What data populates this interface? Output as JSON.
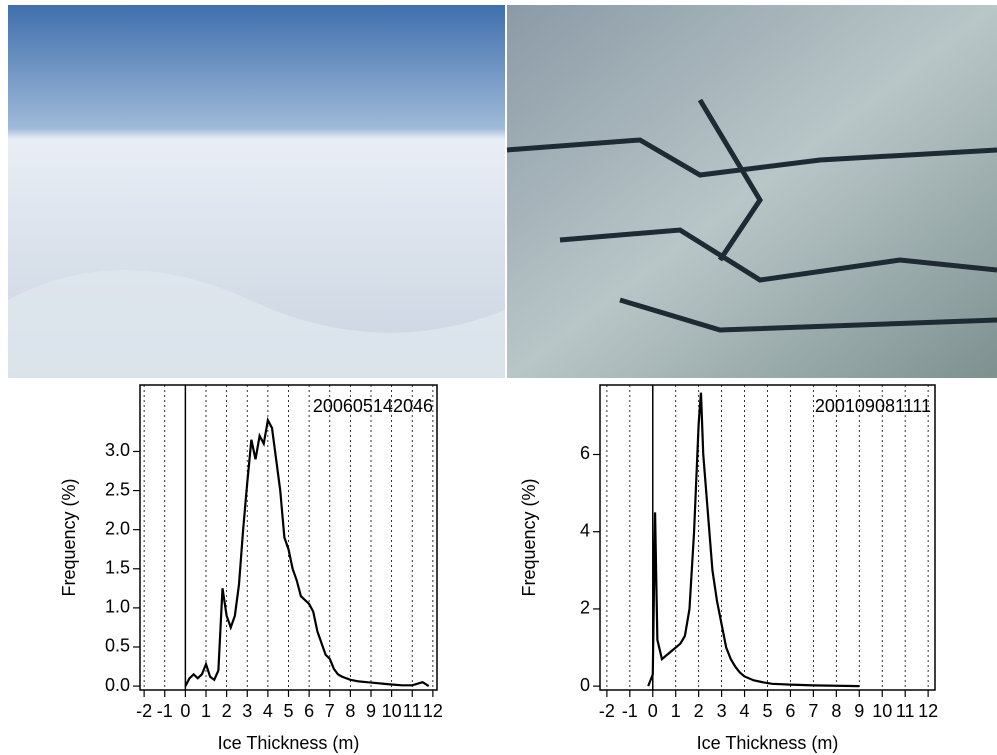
{
  "chart_data": [
    {
      "type": "line",
      "annotation": "200605142046",
      "x_label": "Ice Thickness (m)",
      "y_label": "Frequency (%)",
      "color": "#000000",
      "grid": true,
      "xlim": [
        -2.2,
        12.2
      ],
      "xticks": [
        -2,
        -1,
        0,
        1,
        2,
        3,
        4,
        5,
        6,
        7,
        8,
        9,
        10,
        11,
        12
      ],
      "ylim": [
        -0.05,
        3.85
      ],
      "yticks": [
        {
          "value": 0,
          "label": "0.0"
        },
        0.5,
        {
          "value": 1,
          "label": "1.0"
        },
        1.5,
        {
          "value": 2,
          "label": "2.0"
        },
        2.5,
        {
          "value": 3,
          "label": "3.0"
        }
      ],
      "x": [
        0,
        0.2,
        0.4,
        0.6,
        0.8,
        1.0,
        1.2,
        1.4,
        1.6,
        1.8,
        2.0,
        2.2,
        2.4,
        2.6,
        2.8,
        3.0,
        3.2,
        3.4,
        3.6,
        3.8,
        4.0,
        4.2,
        4.4,
        4.6,
        4.8,
        5.0,
        5.2,
        5.4,
        5.6,
        5.8,
        6.0,
        6.2,
        6.4,
        6.6,
        6.8,
        7.0,
        7.2,
        7.4,
        7.6,
        7.8,
        8.0,
        8.4,
        8.8,
        9.2,
        9.6,
        10,
        10.5,
        11,
        11.5,
        11.8
      ],
      "values": [
        0,
        0.1,
        0.15,
        0.1,
        0.15,
        0.28,
        0.12,
        0.08,
        0.2,
        1.25,
        0.9,
        0.75,
        0.9,
        1.3,
        2.0,
        2.6,
        3.15,
        2.9,
        3.2,
        3.1,
        3.4,
        3.3,
        2.9,
        2.5,
        1.9,
        1.75,
        1.5,
        1.35,
        1.15,
        1.1,
        1.05,
        0.95,
        0.7,
        0.55,
        0.4,
        0.35,
        0.22,
        0.15,
        0.12,
        0.1,
        0.08,
        0.06,
        0.05,
        0.04,
        0.03,
        0.02,
        0.01,
        0.01,
        0.05,
        0
      ]
    },
    {
      "type": "line",
      "annotation": "200109081111",
      "x_label": "Ice Thickness (m)",
      "y_label": "Frequency (%)",
      "color": "#000000",
      "grid": true,
      "xlim": [
        -2.3,
        12.3
      ],
      "xticks": [
        -2,
        -1,
        0,
        1,
        2,
        3,
        4,
        5,
        6,
        7,
        8,
        9,
        10,
        11,
        12
      ],
      "ylim": [
        -0.1,
        7.8
      ],
      "yticks": [
        0,
        2,
        4,
        6
      ],
      "x": [
        -0.2,
        0.0,
        0.1,
        0.2,
        0.4,
        0.6,
        0.8,
        1.0,
        1.2,
        1.4,
        1.6,
        1.8,
        2.0,
        2.1,
        2.2,
        2.4,
        2.6,
        2.8,
        3.0,
        3.2,
        3.4,
        3.6,
        3.8,
        4.0,
        4.4,
        4.8,
        5.2,
        6,
        7,
        8,
        9
      ],
      "values": [
        0,
        0.3,
        4.5,
        1.2,
        0.7,
        0.8,
        0.9,
        1.0,
        1.1,
        1.3,
        2.0,
        4.0,
        6.8,
        7.6,
        6.0,
        4.5,
        3.0,
        2.2,
        1.6,
        1.0,
        0.7,
        0.5,
        0.35,
        0.25,
        0.15,
        0.1,
        0.06,
        0.04,
        0.02,
        0.01,
        0
      ]
    }
  ]
}
